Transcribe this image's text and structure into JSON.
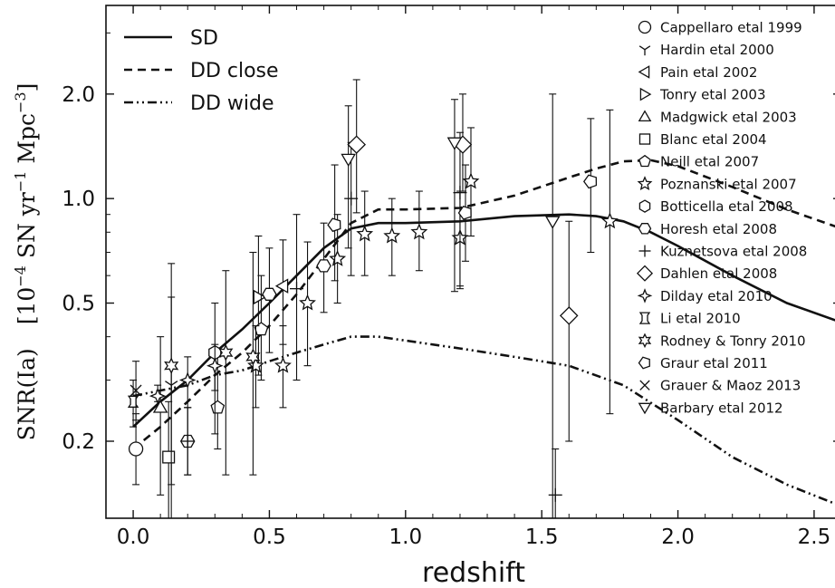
{
  "chart_data": {
    "type": "scatter",
    "title": "",
    "xlabel": "redshift",
    "ylabel": {
      "main": "SNR(Ia)",
      "unit_prefix": "[10",
      "unit_exp1": "−4",
      "unit_mid": " SN yr",
      "unit_exp2": "−1",
      "unit_mid2": " Mpc",
      "unit_exp3": "−3",
      "unit_suffix": "]"
    },
    "xlim": [
      -0.1,
      2.6
    ],
    "ylim": [
      0.12,
      3.6
    ],
    "yscale": "log",
    "xticks": [
      0.0,
      0.5,
      1.0,
      1.5,
      2.0,
      2.5
    ],
    "xtick_labels": [
      "0.0",
      "0.5",
      "1.0",
      "1.5",
      "2.0",
      "2.5"
    ],
    "yticks": [
      0.2,
      0.5,
      1.0,
      2.0
    ],
    "ytick_labels": [
      "0.2",
      "0.5",
      "1.0",
      "2.0"
    ],
    "grid": false,
    "model_legend_position": "top-left",
    "survey_legend_position": "top-right",
    "lines": [
      {
        "name": "SD",
        "dash": "solid",
        "x": [
          0.0,
          0.1,
          0.2,
          0.3,
          0.4,
          0.5,
          0.6,
          0.7,
          0.8,
          0.9,
          1.0,
          1.2,
          1.4,
          1.6,
          1.7,
          1.8,
          1.9,
          2.0,
          2.2,
          2.4,
          2.6
        ],
        "y": [
          0.22,
          0.26,
          0.3,
          0.36,
          0.42,
          0.5,
          0.6,
          0.72,
          0.82,
          0.85,
          0.85,
          0.86,
          0.89,
          0.9,
          0.89,
          0.86,
          0.8,
          0.73,
          0.6,
          0.5,
          0.44
        ]
      },
      {
        "name": "DD close",
        "dash": "dashed",
        "x": [
          0.0,
          0.1,
          0.2,
          0.3,
          0.4,
          0.5,
          0.6,
          0.7,
          0.8,
          0.9,
          1.0,
          1.2,
          1.4,
          1.6,
          1.7,
          1.8,
          1.9,
          2.0,
          2.2,
          2.4,
          2.6
        ],
        "y": [
          0.19,
          0.22,
          0.26,
          0.31,
          0.36,
          0.43,
          0.53,
          0.67,
          0.85,
          0.93,
          0.93,
          0.94,
          1.02,
          1.15,
          1.22,
          1.28,
          1.29,
          1.24,
          1.08,
          0.93,
          0.82
        ]
      },
      {
        "name": "DD wide",
        "dash": "dashdot",
        "x": [
          0.0,
          0.1,
          0.2,
          0.3,
          0.4,
          0.5,
          0.6,
          0.7,
          0.8,
          0.9,
          1.0,
          1.2,
          1.4,
          1.6,
          1.8,
          2.0,
          2.2,
          2.4,
          2.6
        ],
        "y": [
          0.27,
          0.28,
          0.29,
          0.31,
          0.32,
          0.34,
          0.36,
          0.38,
          0.4,
          0.4,
          0.39,
          0.37,
          0.35,
          0.33,
          0.29,
          0.23,
          0.18,
          0.15,
          0.13
        ]
      }
    ],
    "series": [
      {
        "name": "Cappellaro etal 1999",
        "marker": "circle",
        "points": [
          [
            0.01,
            0.19,
            0.15,
            0.24
          ]
        ]
      },
      {
        "name": "Hardin etal 2000",
        "marker": "tri_down",
        "points": [
          [
            0.14,
            0.29,
            0.09,
            0.52
          ]
        ]
      },
      {
        "name": "Pain etal 2002",
        "marker": "triangle_left",
        "points": [
          [
            0.55,
            0.56,
            0.38,
            0.76
          ]
        ]
      },
      {
        "name": "Tonry etal 2003",
        "marker": "triangle_right",
        "points": [
          [
            0.46,
            0.52,
            0.31,
            0.78
          ]
        ]
      },
      {
        "name": "Madgwick etal 2003",
        "marker": "triangle_up",
        "points": [
          [
            0.1,
            0.25,
            0.14,
            0.4
          ]
        ]
      },
      {
        "name": "Blanc etal 2004",
        "marker": "square",
        "points": [
          [
            0.13,
            0.18,
            0.11,
            0.26
          ]
        ]
      },
      {
        "name": "Neill etal 2007",
        "marker": "pentagon",
        "points": [
          [
            0.31,
            0.25,
            0.19,
            0.35
          ],
          [
            0.47,
            0.42,
            0.3,
            0.6
          ]
        ]
      },
      {
        "name": "Poznanski etal 2007",
        "marker": "star",
        "points": [
          [
            0.45,
            0.33,
            0.25,
            0.43
          ],
          [
            0.55,
            0.33,
            0.25,
            0.43
          ],
          [
            0.64,
            0.5,
            0.33,
            0.75
          ],
          [
            0.75,
            0.67,
            0.5,
            0.9
          ],
          [
            0.85,
            0.79,
            0.6,
            1.05
          ],
          [
            0.95,
            0.78,
            0.6,
            1.0
          ],
          [
            1.05,
            0.8,
            0.62,
            1.05
          ],
          [
            1.2,
            0.77,
            0.56,
            1.05
          ],
          [
            1.24,
            1.12,
            0.78,
            1.6
          ],
          [
            1.75,
            0.86,
            0.24,
            1.8
          ]
        ]
      },
      {
        "name": "Botticella etal 2008",
        "marker": "hexagon",
        "points": [
          [
            0.3,
            0.36,
            0.21,
            0.5
          ]
        ]
      },
      {
        "name": "Horesh etal 2008",
        "marker": "hexagon2",
        "points": [
          [
            0.2,
            0.2,
            0.16,
            0.25
          ],
          [
            0.5,
            0.53,
            0.36,
            0.72
          ],
          [
            0.7,
            0.64,
            0.47,
            0.85
          ]
        ]
      },
      {
        "name": "Kuznetsova etal 2008",
        "marker": "plus",
        "points": [
          [
            0.2,
            0.2,
            0.16,
            0.25
          ],
          [
            0.6,
            0.55,
            0.3,
            0.9
          ],
          [
            0.8,
            1.0,
            0.6,
            1.45
          ],
          [
            1.2,
            1.04,
            0.55,
            1.55
          ],
          [
            1.55,
            0.14,
            0.09,
            0.19
          ]
        ]
      },
      {
        "name": "Dahlen etal 2008",
        "marker": "diamond",
        "points": [
          [
            0.82,
            1.43,
            0.91,
            2.2
          ],
          [
            1.21,
            1.43,
            1.05,
            2.0
          ],
          [
            1.6,
            0.46,
            0.2,
            0.86
          ]
        ]
      },
      {
        "name": "Dilday etal 2010",
        "marker": "star4",
        "points": [
          [
            0.09,
            0.27,
            0.26,
            0.29
          ],
          [
            0.2,
            0.3,
            0.25,
            0.35
          ],
          [
            0.3,
            0.33,
            0.28,
            0.38
          ]
        ]
      },
      {
        "name": "Li etal 2010",
        "marker": "li",
        "points": [
          [
            0.0,
            0.26,
            0.22,
            0.3
          ]
        ]
      },
      {
        "name": "Rodney & Tonry 2010",
        "marker": "star6",
        "points": [
          [
            0.14,
            0.33,
            0.15,
            0.65
          ],
          [
            0.34,
            0.36,
            0.16,
            0.62
          ],
          [
            0.44,
            0.35,
            0.16,
            0.7
          ]
        ]
      },
      {
        "name": "Graur etal 2011",
        "marker": "pentagon_down",
        "points": [
          [
            0.74,
            0.84,
            0.58,
            1.25
          ],
          [
            1.22,
            0.91,
            0.66,
            1.25
          ],
          [
            1.68,
            1.12,
            0.7,
            1.7
          ]
        ]
      },
      {
        "name": "Grauer & Maoz 2013",
        "marker": "x",
        "points": [
          [
            0.01,
            0.28,
            0.23,
            0.34
          ]
        ]
      },
      {
        "name": "Barbary etal 2012",
        "marker": "tri_inv",
        "points": [
          [
            0.79,
            1.3,
            0.72,
            1.85
          ],
          [
            1.18,
            1.45,
            0.54,
            1.93
          ],
          [
            1.54,
            0.86,
            0.12,
            2.0
          ]
        ]
      }
    ]
  }
}
